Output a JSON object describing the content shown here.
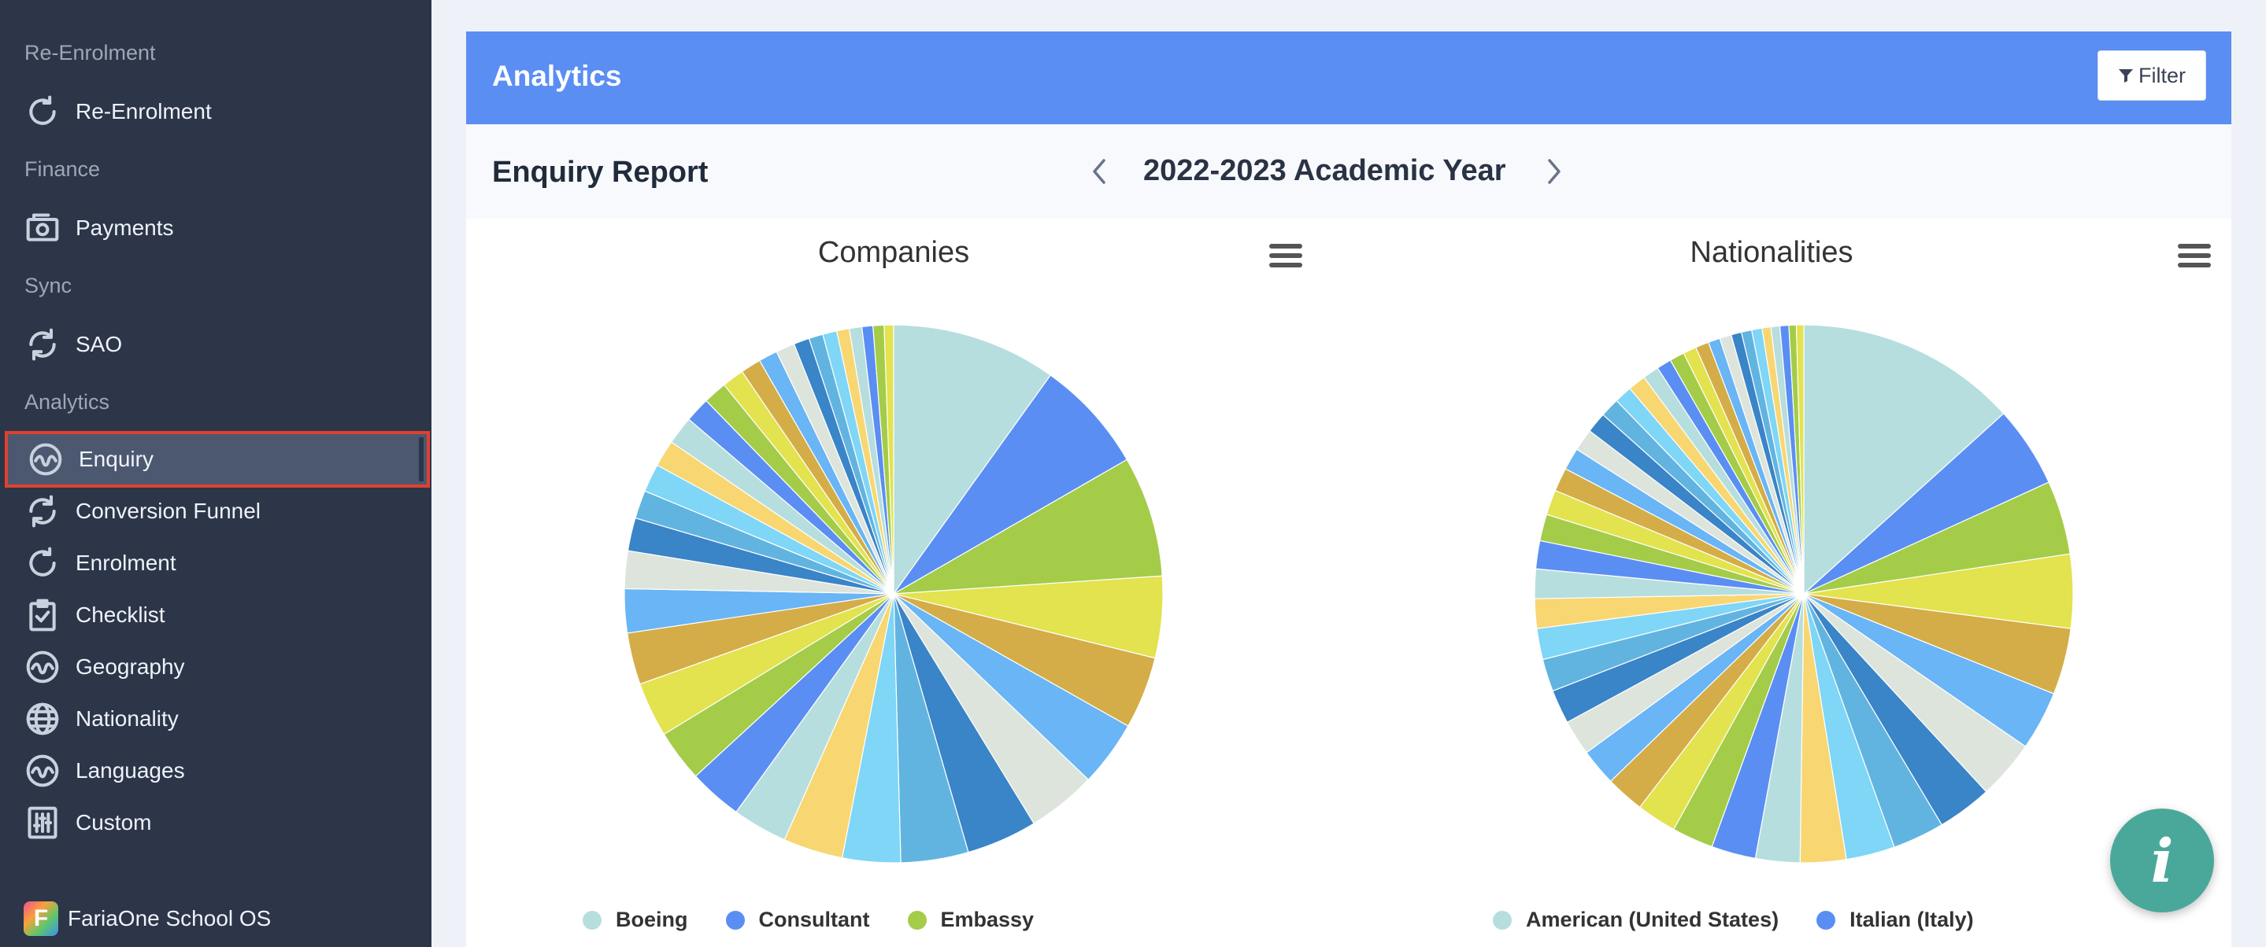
{
  "sidebar": {
    "sections": [
      {
        "label": "Re-Enrolment",
        "items": [
          {
            "label": "Re-Enrolment",
            "icon": "refresh-icon"
          }
        ]
      },
      {
        "label": "Finance",
        "items": [
          {
            "label": "Payments",
            "icon": "camera-icon"
          }
        ]
      },
      {
        "label": "Sync",
        "items": [
          {
            "label": "SAO",
            "icon": "sync-icon"
          }
        ]
      },
      {
        "label": "Analytics",
        "items": [
          {
            "label": "Enquiry",
            "icon": "wave-icon",
            "active": true
          },
          {
            "label": "Conversion Funnel",
            "icon": "sync-icon"
          },
          {
            "label": "Enrolment",
            "icon": "refresh-icon"
          },
          {
            "label": "Checklist",
            "icon": "clipboard-icon"
          },
          {
            "label": "Geography",
            "icon": "wave-icon"
          },
          {
            "label": "Nationality",
            "icon": "globe-icon"
          },
          {
            "label": "Languages",
            "icon": "wave-icon"
          },
          {
            "label": "Custom",
            "icon": "sliders-icon"
          }
        ]
      }
    ],
    "brand": {
      "logo_letter": "F",
      "label": "FariaOne School OS"
    }
  },
  "header": {
    "title": "Analytics",
    "filter_label": "Filter"
  },
  "report": {
    "title": "Enquiry Report",
    "year": "2022-2023 Academic Year"
  },
  "palette": [
    "#b6dede",
    "#5b8ef2",
    "#a4cc48",
    "#e3e24f",
    "#d4ad48",
    "#69b5f5",
    "#dde4dc",
    "#3a84c8",
    "#62b4e0",
    "#7fd6f6",
    "#f8d672"
  ],
  "fab_label": "i",
  "chart_data": [
    {
      "type": "pie",
      "title": "Companies",
      "legend": [
        "Boeing",
        "Consultant",
        "Embassy"
      ],
      "values": [
        10.5,
        7.2,
        7.7,
        5.2,
        4.6,
        4.2,
        4.4,
        4.5,
        4.3,
        3.7,
        3.8,
        3.5,
        3.4,
        3.3,
        3.5,
        3.3,
        2.8,
        2.4,
        2.1,
        1.8,
        1.8,
        1.7,
        1.8,
        1.6,
        1.5,
        1.4,
        1.3,
        1.2,
        1.2,
        1.0,
        0.9,
        0.9,
        0.8,
        0.8,
        0.7,
        0.7,
        0.6
      ]
    },
    {
      "type": "pie",
      "title": "Nationalities",
      "legend": [
        "American (United States)",
        "Italian (Italy)"
      ],
      "values": [
        15,
        5.5,
        5,
        5,
        4.5,
        4,
        4,
        3.7,
        3.5,
        3.3,
        3.1,
        3,
        3,
        2.8,
        2.7,
        2.6,
        2.5,
        2.4,
        2.3,
        2.2,
        2.1,
        2,
        2,
        1.9,
        1.8,
        1.7,
        1.6,
        1.5,
        1.5,
        1.4,
        1.3,
        1.2,
        1.2,
        1.1,
        1,
        1,
        0.9,
        0.9,
        0.8,
        0.8,
        0.7,
        0.7,
        0.7,
        0.6,
        0.6,
        0.6,
        0.5,
        0.5
      ]
    }
  ]
}
